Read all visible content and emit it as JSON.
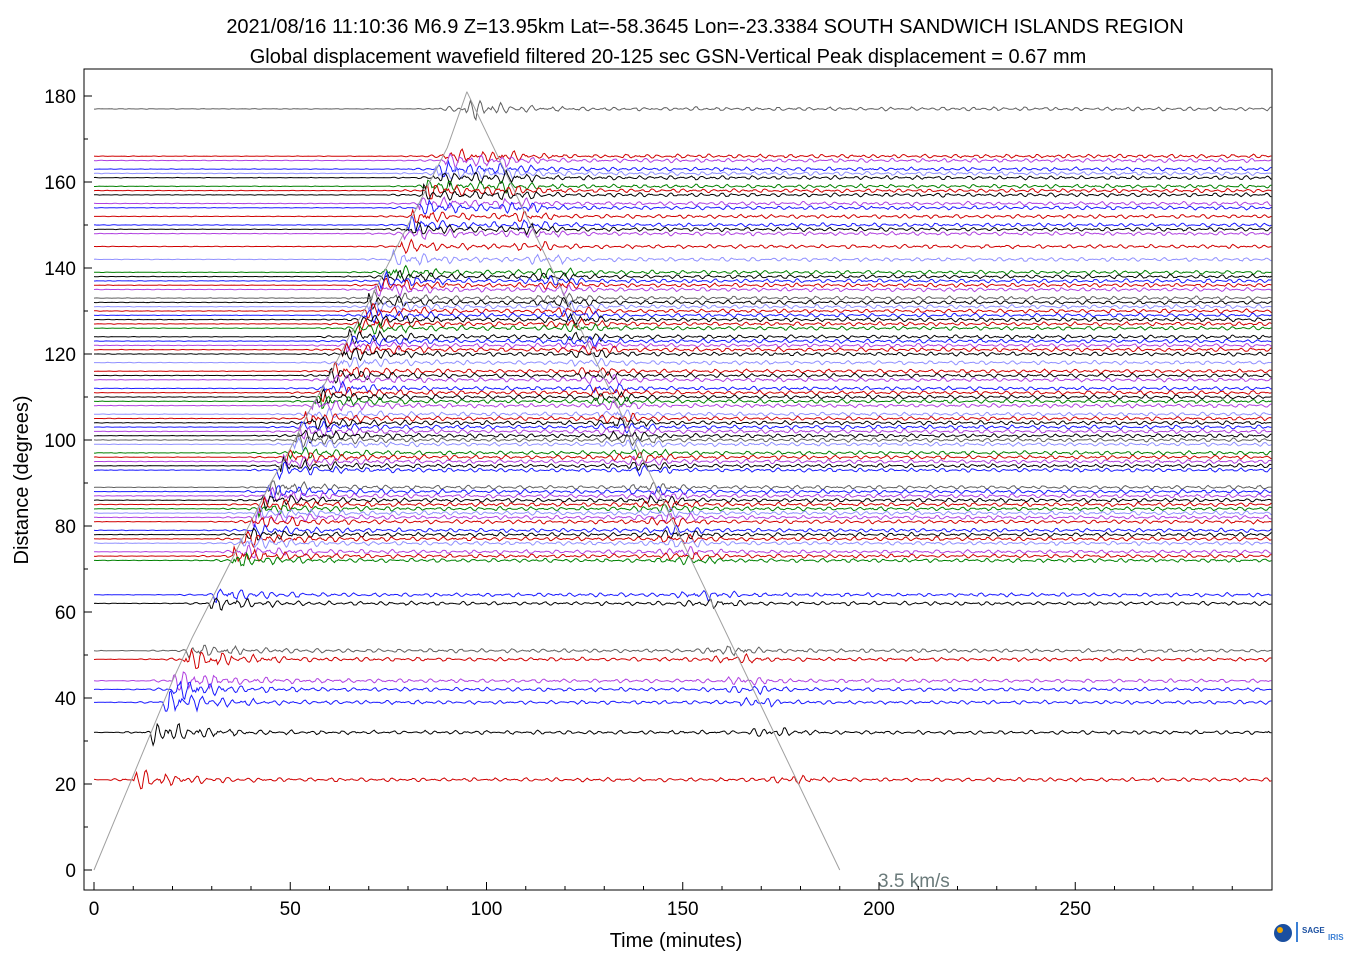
{
  "chart_data": {
    "type": "line",
    "title": "2021/08/16  11:10:36   M6.9   Z=13.95km   Lat=-58.3645  Lon=-23.3384   SOUTH SANDWICH ISLANDS REGION",
    "subtitle": "Global displacement wavefield      filtered 20-125 sec     GSN-Vertical     Peak displacement = 0.67 mm",
    "xlabel": "Time (minutes)",
    "ylabel": "Distance (degrees)",
    "xlim": [
      0,
      300
    ],
    "ylim": [
      -5,
      186
    ],
    "xticks": [
      "0",
      "50",
      "100",
      "150",
      "200",
      "250"
    ],
    "xtick_values": [
      0,
      50,
      100,
      150,
      200,
      250
    ],
    "yticks": [
      "0",
      "20",
      "40",
      "60",
      "80",
      "100",
      "120",
      "140",
      "160",
      "180"
    ],
    "ytick_values": [
      0,
      20,
      40,
      60,
      80,
      100,
      120,
      140,
      160,
      180
    ],
    "trace_colors": [
      "#000000",
      "#d00000",
      "#1a1aff",
      "#008000",
      "#b040e0",
      "#9090ff",
      "#606060"
    ],
    "trace_distances": [
      177,
      166,
      165,
      163,
      162,
      161,
      159,
      158,
      157,
      155,
      154,
      152,
      150,
      149,
      148,
      145,
      142,
      139,
      138,
      137,
      136,
      135,
      133,
      132,
      131,
      130,
      129,
      128,
      127,
      126,
      124,
      123,
      122,
      121,
      120,
      118,
      116,
      115,
      114,
      112,
      111,
      110,
      109,
      108,
      106,
      105,
      104,
      103,
      102,
      101,
      100,
      99,
      97,
      96,
      95,
      94,
      93,
      89,
      88,
      87,
      86,
      85,
      84,
      83,
      82,
      81,
      79,
      78,
      77,
      76,
      74,
      73,
      72,
      64,
      62,
      51,
      49,
      44,
      42,
      39,
      32,
      21
    ],
    "trace_color_index": [
      6,
      1,
      4,
      2,
      5,
      0,
      3,
      1,
      0,
      4,
      2,
      1,
      2,
      0,
      4,
      1,
      5,
      3,
      0,
      2,
      1,
      4,
      6,
      0,
      5,
      1,
      2,
      0,
      1,
      3,
      0,
      2,
      4,
      1,
      0,
      5,
      1,
      0,
      4,
      2,
      1,
      0,
      3,
      4,
      5,
      1,
      0,
      2,
      4,
      0,
      6,
      5,
      3,
      1,
      4,
      0,
      2,
      6,
      2,
      4,
      0,
      1,
      3,
      5,
      4,
      1,
      2,
      0,
      1,
      5,
      4,
      1,
      3,
      2,
      0,
      6,
      1,
      4,
      2,
      2,
      0,
      1
    ],
    "arrival_curve": {
      "x": [
        0,
        5,
        10,
        15,
        20,
        25,
        30,
        35,
        40,
        45,
        50,
        55,
        60,
        65,
        70,
        75,
        80,
        85,
        90,
        95
      ],
      "y": [
        0,
        11,
        22,
        33,
        44,
        54,
        63,
        72,
        81,
        90,
        98,
        107,
        115,
        124,
        132,
        141,
        150,
        159,
        168,
        181
      ]
    },
    "surface_wave_line": {
      "x": [
        95,
        190
      ],
      "y": [
        181,
        0
      ],
      "label": "3.5 km/s"
    },
    "grid": false
  },
  "logo": {
    "text_main": "SAGE",
    "text_sub": "IRIS",
    "colors": [
      "#1a4fa0",
      "#f2a900",
      "#3a7fd5"
    ]
  },
  "colors": {
    "surface_line": "#a0a0a0",
    "vel_label": "#6b7b7b",
    "axis": "#000000"
  }
}
